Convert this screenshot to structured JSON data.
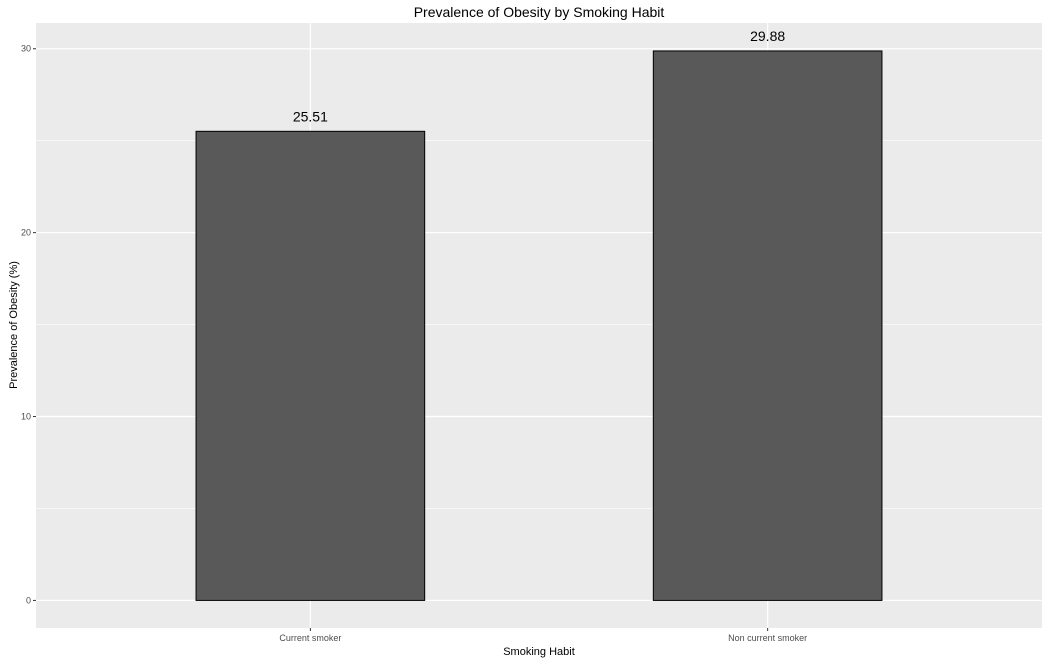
{
  "chart_data": {
    "type": "bar",
    "title": "Prevalence of Obesity by Smoking Habit",
    "xlabel": "Smoking Habit",
    "ylabel": "Prevalence of Obesity (%)",
    "categories": [
      "Current smoker",
      "Non current smoker"
    ],
    "values": [
      25.51,
      29.88
    ],
    "data_labels": [
      "25.51",
      "29.88"
    ],
    "ylim": [
      -1.5,
      31.4
    ],
    "yticks": [
      0,
      10,
      20,
      30
    ],
    "grid": true,
    "legend": "none",
    "colors": {
      "bar_fill": "#595959",
      "bar_stroke": "#000000",
      "panel_background": "#ebebeb",
      "grid": "#ffffff"
    }
  }
}
